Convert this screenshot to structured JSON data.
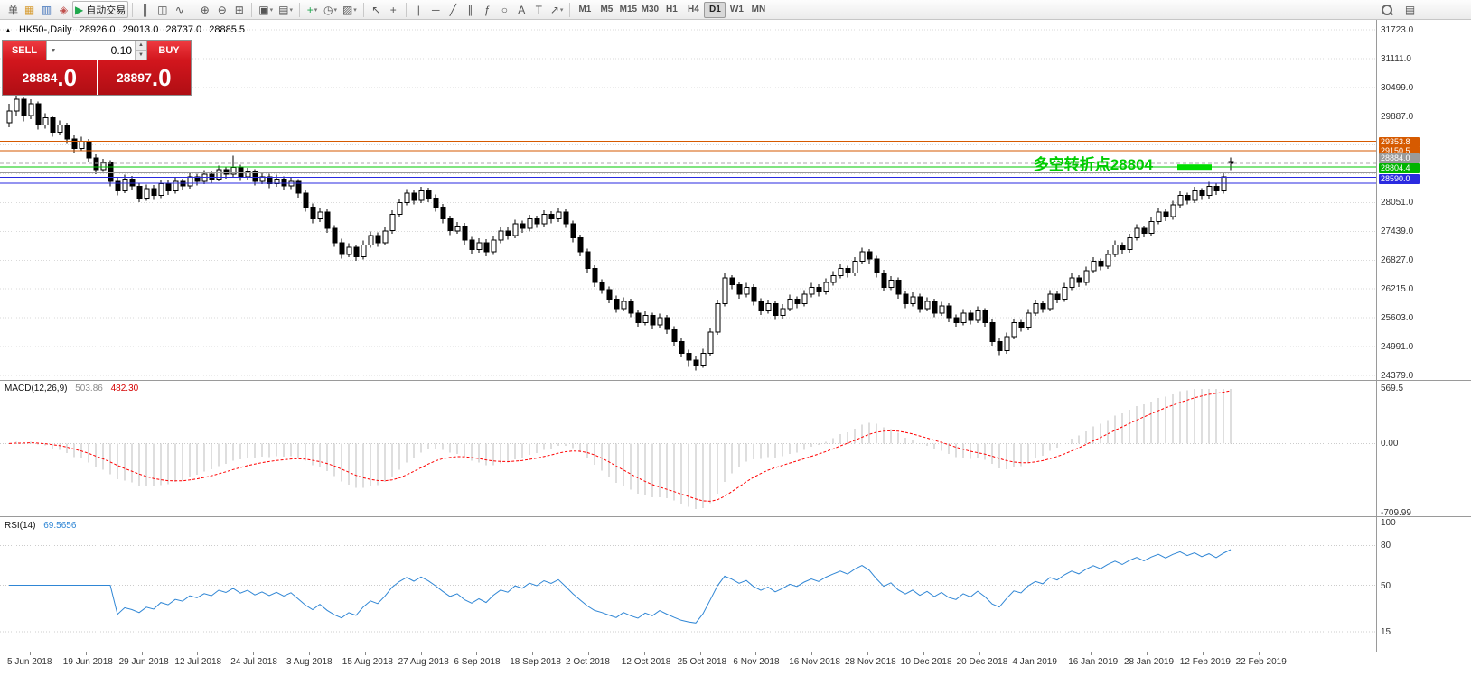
{
  "toolbar": {
    "groups": [
      {
        "items": [
          {
            "name": "orders-menu",
            "text": "单"
          },
          {
            "name": "new-chart-icon",
            "glyph": "▦",
            "color": "#d79b2f"
          },
          {
            "name": "profiles-icon",
            "glyph": "▥",
            "color": "#3c6fb8"
          },
          {
            "name": "market-watch-icon",
            "glyph": "◈",
            "color": "#c0504d"
          },
          {
            "name": "autotrading-button",
            "glyph": "▶",
            "glyph_color": "#1ea84c",
            "text": "自动交易",
            "framed": true
          }
        ]
      },
      {
        "items": [
          {
            "name": "bar-chart-icon",
            "glyph": "║"
          },
          {
            "name": "candlestick-chart-icon",
            "glyph": "◫"
          },
          {
            "name": "line-chart-icon",
            "glyph": "∿"
          }
        ]
      },
      {
        "items": [
          {
            "name": "zoom-in-icon",
            "glyph": "⊕"
          },
          {
            "name": "zoom-out-icon",
            "glyph": "⊖"
          },
          {
            "name": "tile-windows-icon",
            "glyph": "⊞"
          }
        ]
      },
      {
        "items": [
          {
            "name": "new-window-icon",
            "glyph": "▣",
            "caret": true
          },
          {
            "name": "profiles-menu-icon",
            "glyph": "▤",
            "caret": true
          }
        ]
      },
      {
        "items": [
          {
            "name": "add-indicator-icon",
            "glyph": "+",
            "color": "#1ea84c",
            "caret": true
          },
          {
            "name": "periods-icon",
            "glyph": "◷",
            "caret": true
          },
          {
            "name": "templates-icon",
            "glyph": "▨",
            "caret": true
          }
        ]
      },
      {
        "items": [
          {
            "name": "cursor-icon",
            "glyph": "↖"
          },
          {
            "name": "crosshair-icon",
            "glyph": "+"
          }
        ]
      },
      {
        "items": [
          {
            "name": "vertical-line-icon",
            "glyph": "|"
          },
          {
            "name": "horizontal-line-icon",
            "glyph": "─"
          },
          {
            "name": "trendline-icon",
            "glyph": "╱"
          },
          {
            "name": "channel-icon",
            "glyph": "∥"
          },
          {
            "name": "fibonacci-icon",
            "glyph": "ƒ"
          },
          {
            "name": "shapes-icon",
            "glyph": "○"
          },
          {
            "name": "text-icon",
            "glyph": "A"
          },
          {
            "name": "label-icon",
            "glyph": "T"
          },
          {
            "name": "arrows-icon",
            "glyph": "↗",
            "caret": true
          }
        ]
      }
    ],
    "timeframes": [
      "M1",
      "M5",
      "M15",
      "M30",
      "H1",
      "H4",
      "D1",
      "W1",
      "MN"
    ],
    "active_timeframe": "D1",
    "right_items": [
      {
        "name": "search-icon",
        "kind": "magnifier"
      },
      {
        "name": "data-window-icon",
        "glyph": "▤"
      }
    ]
  },
  "chart_header": {
    "marker": "▲",
    "symbol_period": "HK50-,Daily",
    "open": "28926.0",
    "high": "29013.0",
    "low": "28737.0",
    "close": "28885.5"
  },
  "quote_panel": {
    "sell_label": "SELL",
    "buy_label": "BUY",
    "volume": "0.10",
    "volume_dropdown_icon": "▼",
    "stepper_up_icon": "▲",
    "stepper_down_icon": "▼",
    "sell_price": "28884.0",
    "sell_price_main": "28884",
    "sell_price_frac": ".0",
    "buy_price": "28897.0",
    "buy_price_main": "28897",
    "buy_price_frac": ".0"
  },
  "annotation": {
    "text": "多空转折点28804",
    "color": "#00cc00"
  },
  "chart_data": {
    "type": "candlestick",
    "symbol": "HK50",
    "period": "Daily",
    "price_axis": {
      "gridlines": [
        31723,
        31111,
        30499,
        29887,
        29275,
        28663,
        28051,
        27439,
        26827,
        26215,
        25603,
        24991,
        24379
      ],
      "labeled": [
        31723,
        31111,
        30499,
        29887,
        28051,
        27439,
        26827,
        26215,
        25603,
        24991,
        24379
      ]
    },
    "hlines": [
      {
        "price": 29353.8,
        "color": "#d65a00",
        "label": "29353.8",
        "label_bg": "#d65a00"
      },
      {
        "price": 29150.5,
        "color": "#d65a00",
        "label": "29150.5",
        "label_bg": "#d65a00"
      },
      {
        "price": 28884.0,
        "color": "#aaaaaa",
        "dash": "4,3",
        "label": "28884.0",
        "label_bg": "#9a9a9a",
        "label_dy": -6
      },
      {
        "price": 28804.4,
        "color": "#00c800",
        "label": "28804.4",
        "label_bg": "#00b400",
        "label_dy": 1
      },
      {
        "price": 28680.0,
        "color": "#999999"
      },
      {
        "price": 28590.0,
        "color": "#2a2ae0",
        "label": "28590.0",
        "label_bg": "#2a2ae0",
        "label_dy": 2
      },
      {
        "price": 28460.0,
        "color": "#2a2ae0"
      }
    ],
    "annotation_segment": {
      "price": 28804,
      "color": "#00dd00"
    },
    "x_labels": [
      "5 Jun 2018",
      "19 Jun 2018",
      "29 Jun 2018",
      "12 Jul 2018",
      "24 Jul 2018",
      "3 Aug 2018",
      "15 Aug 2018",
      "27 Aug 2018",
      "6 Sep 2018",
      "18 Sep 2018",
      "2 Oct 2018",
      "12 Oct 2018",
      "25 Oct 2018",
      "6 Nov 2018",
      "16 Nov 2018",
      "28 Nov 2018",
      "10 Dec 2018",
      "20 Dec 2018",
      "4 Jan 2019",
      "16 Jan 2019",
      "28 Jan 2019",
      "12 Feb 2019",
      "22 Feb 2019"
    ],
    "macd": {
      "name": "MACD(12,26,9)",
      "value_main": "503.86",
      "value_signal": "482.30",
      "axis_labels": [
        "569.5",
        "0.00",
        "-709.99"
      ],
      "axis_values": [
        569.5,
        0,
        -709.99
      ],
      "histogram_color": "#bdbdbd",
      "signal_color": "#ff0000",
      "params": [
        12,
        26,
        9
      ]
    },
    "rsi": {
      "name": "RSI(14)",
      "value": "69.5656",
      "period": 14,
      "axis_labels": [
        "100",
        "80",
        "50",
        "15"
      ],
      "axis_values": [
        100,
        80,
        50,
        15
      ],
      "levels": [
        80,
        50,
        15
      ],
      "line_color": "#2f86d5"
    },
    "candles": [
      [
        29750,
        30150,
        29650,
        30000
      ],
      [
        30000,
        30400,
        29900,
        30250
      ],
      [
        30250,
        30300,
        29780,
        29900
      ],
      [
        29900,
        30250,
        29820,
        30150
      ],
      [
        30150,
        30200,
        29600,
        29700
      ],
      [
        29700,
        29950,
        29620,
        29850
      ],
      [
        29850,
        29900,
        29450,
        29550
      ],
      [
        29550,
        29800,
        29480,
        29700
      ],
      [
        29700,
        29750,
        29300,
        29400
      ],
      [
        29400,
        29480,
        29100,
        29200
      ],
      [
        29200,
        29450,
        29150,
        29350
      ],
      [
        29350,
        29400,
        28900,
        29000
      ],
      [
        29000,
        29080,
        28650,
        28750
      ],
      [
        28750,
        28980,
        28700,
        28900
      ],
      [
        28900,
        28950,
        28400,
        28500
      ],
      [
        28500,
        28580,
        28200,
        28300
      ],
      [
        28300,
        28640,
        28250,
        28550
      ],
      [
        28550,
        28620,
        28310,
        28400
      ],
      [
        28400,
        28460,
        28060,
        28150
      ],
      [
        28150,
        28430,
        28090,
        28350
      ],
      [
        28350,
        28420,
        28110,
        28200
      ],
      [
        28200,
        28530,
        28150,
        28450
      ],
      [
        28450,
        28520,
        28210,
        28300
      ],
      [
        28300,
        28580,
        28240,
        28500
      ],
      [
        28500,
        28560,
        28310,
        28400
      ],
      [
        28400,
        28690,
        28350,
        28600
      ],
      [
        28600,
        28660,
        28410,
        28500
      ],
      [
        28500,
        28740,
        28440,
        28650
      ],
      [
        28650,
        28710,
        28460,
        28550
      ],
      [
        28550,
        28840,
        28500,
        28750
      ],
      [
        28750,
        28820,
        28560,
        28650
      ],
      [
        28650,
        29050,
        28600,
        28800
      ],
      [
        28800,
        28860,
        28510,
        28600
      ],
      [
        28600,
        28790,
        28540,
        28700
      ],
      [
        28700,
        28760,
        28410,
        28500
      ],
      [
        28500,
        28690,
        28440,
        28600
      ],
      [
        28600,
        28660,
        28360,
        28450
      ],
      [
        28450,
        28640,
        28390,
        28550
      ],
      [
        28550,
        28610,
        28310,
        28400
      ],
      [
        28400,
        28590,
        28340,
        28500
      ],
      [
        28500,
        28550,
        28160,
        28250
      ],
      [
        28250,
        28320,
        27860,
        27950
      ],
      [
        27950,
        28030,
        27610,
        27700
      ],
      [
        27700,
        27940,
        27640,
        27850
      ],
      [
        27850,
        27910,
        27410,
        27500
      ],
      [
        27500,
        27570,
        27110,
        27200
      ],
      [
        27200,
        27280,
        26860,
        26950
      ],
      [
        26950,
        27190,
        26890,
        27100
      ],
      [
        27100,
        27160,
        26810,
        26900
      ],
      [
        26900,
        27240,
        26840,
        27150
      ],
      [
        27150,
        27440,
        27090,
        27350
      ],
      [
        27350,
        27420,
        27110,
        27200
      ],
      [
        27200,
        27540,
        27140,
        27450
      ],
      [
        27450,
        27890,
        27390,
        27800
      ],
      [
        27800,
        28140,
        27740,
        28050
      ],
      [
        28050,
        28340,
        27990,
        28250
      ],
      [
        28250,
        28320,
        28010,
        28100
      ],
      [
        28100,
        28390,
        28040,
        28300
      ],
      [
        28300,
        28370,
        28060,
        28150
      ],
      [
        28150,
        28220,
        27860,
        27950
      ],
      [
        27950,
        28020,
        27610,
        27700
      ],
      [
        27700,
        27770,
        27360,
        27450
      ],
      [
        27450,
        27640,
        27390,
        27550
      ],
      [
        27550,
        27620,
        27160,
        27250
      ],
      [
        27250,
        27320,
        26960,
        27050
      ],
      [
        27050,
        27290,
        26990,
        27200
      ],
      [
        27200,
        27270,
        26910,
        27000
      ],
      [
        27000,
        27340,
        26940,
        27250
      ],
      [
        27250,
        27540,
        27190,
        27450
      ],
      [
        27450,
        27520,
        27260,
        27350
      ],
      [
        27350,
        27690,
        27290,
        27600
      ],
      [
        27600,
        27670,
        27410,
        27500
      ],
      [
        27500,
        27790,
        27440,
        27700
      ],
      [
        27700,
        27770,
        27510,
        27600
      ],
      [
        27600,
        27890,
        27540,
        27800
      ],
      [
        27800,
        27870,
        27610,
        27700
      ],
      [
        27700,
        27940,
        27640,
        27850
      ],
      [
        27850,
        27910,
        27510,
        27600
      ],
      [
        27600,
        27670,
        27210,
        27300
      ],
      [
        27300,
        27370,
        26910,
        27000
      ],
      [
        27000,
        27070,
        26560,
        26650
      ],
      [
        26650,
        26720,
        26260,
        26350
      ],
      [
        26350,
        26420,
        26110,
        26200
      ],
      [
        26200,
        26270,
        25910,
        26000
      ],
      [
        26000,
        26070,
        25710,
        25800
      ],
      [
        25800,
        26040,
        25740,
        25950
      ],
      [
        25950,
        26010,
        25610,
        25700
      ],
      [
        25700,
        25770,
        25410,
        25500
      ],
      [
        25500,
        25740,
        25440,
        25650
      ],
      [
        25650,
        25710,
        25360,
        25450
      ],
      [
        25450,
        25690,
        25390,
        25600
      ],
      [
        25600,
        25660,
        25260,
        25350
      ],
      [
        25350,
        25420,
        25010,
        25100
      ],
      [
        25100,
        25170,
        24760,
        24850
      ],
      [
        24850,
        24920,
        24560,
        24700
      ],
      [
        24700,
        24780,
        24480,
        24600
      ],
      [
        24600,
        24940,
        24540,
        24850
      ],
      [
        24850,
        25390,
        24790,
        25300
      ],
      [
        25300,
        25990,
        25240,
        25900
      ],
      [
        25900,
        26540,
        25840,
        26450
      ],
      [
        26450,
        26510,
        26210,
        26300
      ],
      [
        26300,
        26370,
        26010,
        26100
      ],
      [
        26100,
        26340,
        26040,
        26250
      ],
      [
        26250,
        26310,
        25860,
        25950
      ],
      [
        25950,
        26020,
        25660,
        25750
      ],
      [
        25750,
        25990,
        25690,
        25900
      ],
      [
        25900,
        25960,
        25560,
        25650
      ],
      [
        25650,
        25890,
        25590,
        25800
      ],
      [
        25800,
        26090,
        25740,
        26000
      ],
      [
        26000,
        26060,
        25810,
        25900
      ],
      [
        25900,
        26190,
        25840,
        26100
      ],
      [
        26100,
        26340,
        26040,
        26250
      ],
      [
        26250,
        26310,
        26060,
        26150
      ],
      [
        26150,
        26440,
        26090,
        26350
      ],
      [
        26350,
        26590,
        26290,
        26500
      ],
      [
        26500,
        26740,
        26440,
        26650
      ],
      [
        26650,
        26710,
        26460,
        26550
      ],
      [
        26550,
        26890,
        26490,
        26800
      ],
      [
        26800,
        27090,
        26740,
        27000
      ],
      [
        27000,
        27060,
        26760,
        26850
      ],
      [
        26850,
        26920,
        26460,
        26550
      ],
      [
        26550,
        26620,
        26160,
        26250
      ],
      [
        26250,
        26490,
        26190,
        26400
      ],
      [
        26400,
        26460,
        26010,
        26100
      ],
      [
        26100,
        26170,
        25810,
        25900
      ],
      [
        25900,
        26140,
        25840,
        26050
      ],
      [
        26050,
        26110,
        25710,
        25800
      ],
      [
        25800,
        26040,
        25740,
        25950
      ],
      [
        25950,
        26010,
        25610,
        25700
      ],
      [
        25700,
        25940,
        25640,
        25850
      ],
      [
        25850,
        25910,
        25510,
        25600
      ],
      [
        25600,
        25670,
        25410,
        25500
      ],
      [
        25500,
        25790,
        25440,
        25700
      ],
      [
        25700,
        25760,
        25460,
        25550
      ],
      [
        25550,
        25840,
        25490,
        25750
      ],
      [
        25750,
        25810,
        25410,
        25500
      ],
      [
        25500,
        25570,
        25010,
        25100
      ],
      [
        25100,
        25170,
        24810,
        24900
      ],
      [
        24900,
        25290,
        24840,
        25200
      ],
      [
        25200,
        25590,
        25140,
        25500
      ],
      [
        25500,
        25560,
        25310,
        25400
      ],
      [
        25400,
        25790,
        25340,
        25700
      ],
      [
        25700,
        25990,
        25640,
        25900
      ],
      [
        25900,
        25960,
        25710,
        25800
      ],
      [
        25800,
        26190,
        25740,
        26100
      ],
      [
        26100,
        26160,
        25910,
        26000
      ],
      [
        26000,
        26340,
        25940,
        26250
      ],
      [
        26250,
        26540,
        26190,
        26450
      ],
      [
        26450,
        26510,
        26260,
        26350
      ],
      [
        26350,
        26690,
        26290,
        26600
      ],
      [
        26600,
        26890,
        26540,
        26800
      ],
      [
        26800,
        26860,
        26610,
        26700
      ],
      [
        26700,
        27040,
        26640,
        26950
      ],
      [
        26950,
        27240,
        26890,
        27150
      ],
      [
        27150,
        27210,
        26960,
        27050
      ],
      [
        27050,
        27390,
        26990,
        27300
      ],
      [
        27300,
        27590,
        27240,
        27500
      ],
      [
        27500,
        27560,
        27310,
        27400
      ],
      [
        27400,
        27740,
        27340,
        27650
      ],
      [
        27650,
        27940,
        27590,
        27850
      ],
      [
        27850,
        27910,
        27660,
        27750
      ],
      [
        27750,
        28090,
        27690,
        28000
      ],
      [
        28000,
        28290,
        27940,
        28200
      ],
      [
        28200,
        28260,
        28010,
        28100
      ],
      [
        28100,
        28390,
        28040,
        28300
      ],
      [
        28300,
        28360,
        28110,
        28200
      ],
      [
        28200,
        28490,
        28140,
        28400
      ],
      [
        28400,
        28460,
        28210,
        28300
      ],
      [
        28300,
        28690,
        28240,
        28600
      ],
      [
        28926,
        29013,
        28737,
        28886
      ]
    ]
  }
}
